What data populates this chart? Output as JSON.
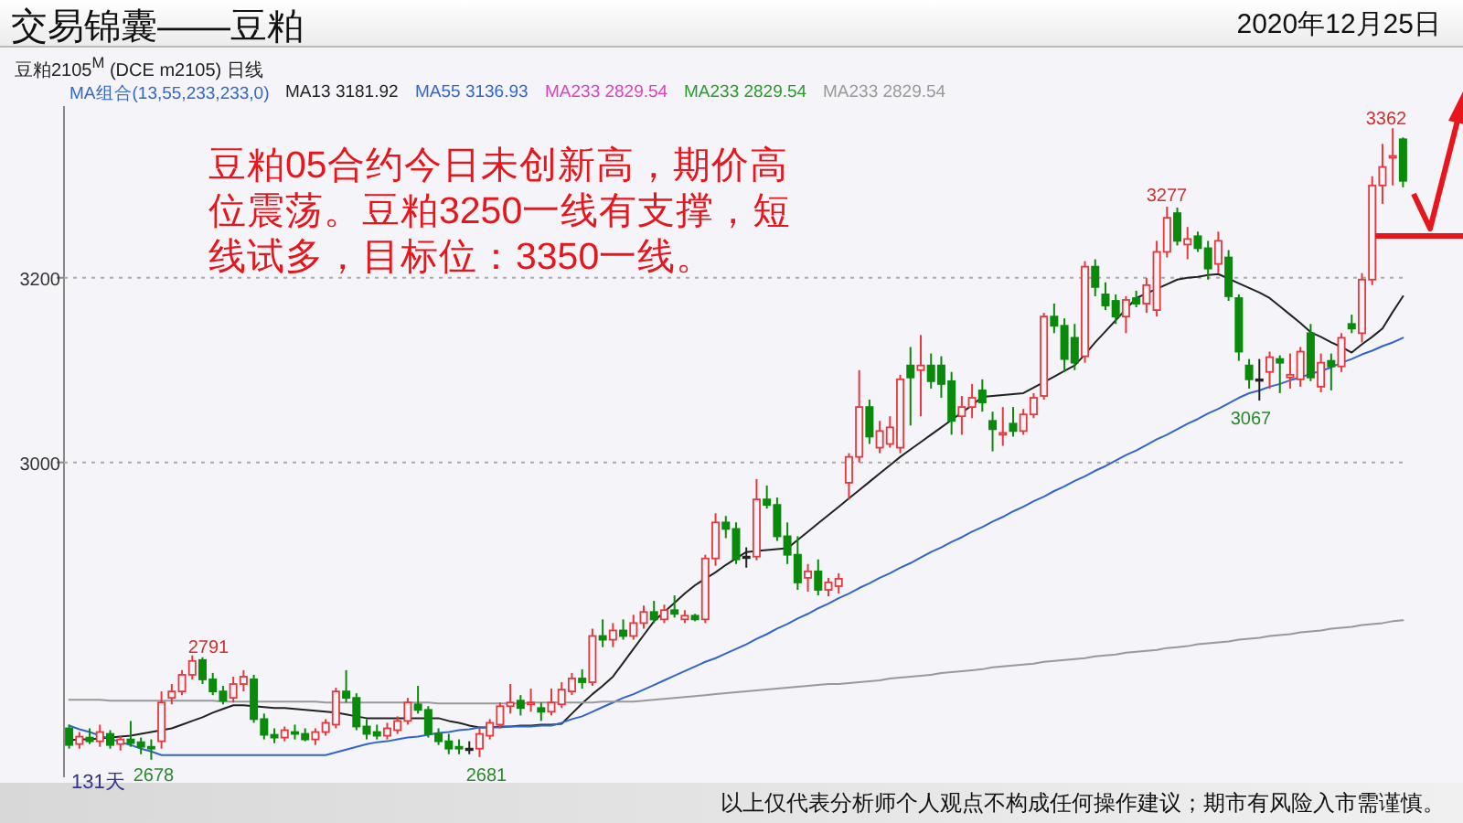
{
  "chart_data": {
    "type": "candlestick",
    "title": "交易锦囊——豆粕",
    "subtitle": "豆粕2105$^{M}$ (DCE m2105)  日线",
    "categories": [
      null,
      null,
      null,
      null,
      null,
      null,
      null,
      null,
      null,
      null,
      null,
      null,
      null,
      null,
      null,
      null,
      null,
      null,
      null,
      null,
      null,
      null,
      null,
      null,
      null,
      null,
      null,
      null,
      null,
      null,
      null,
      null,
      null,
      null,
      null,
      null,
      null,
      null,
      null,
      null,
      null,
      null,
      null,
      null,
      null,
      null,
      null,
      null,
      null,
      null,
      null,
      null,
      null,
      null,
      null,
      null,
      null,
      null,
      null,
      null,
      null,
      null,
      null,
      null,
      null,
      null,
      null,
      null,
      null,
      null,
      null,
      null,
      null,
      null,
      null,
      null,
      null,
      null,
      null,
      null,
      null,
      null,
      null,
      null,
      null,
      null,
      null,
      null,
      null,
      null,
      null,
      null,
      null,
      null,
      null,
      null,
      null,
      null,
      null,
      null,
      null,
      null,
      null,
      null,
      null,
      null,
      null,
      null,
      null,
      null,
      null,
      null,
      null,
      null,
      null,
      null,
      null,
      null,
      null,
      null,
      null,
      null,
      null,
      null,
      null,
      null,
      null,
      null,
      null,
      null,
      null
    ],
    "ohlc": [
      [
        2712,
        2716,
        2690,
        2694
      ],
      [
        2695,
        2708,
        2690,
        2703
      ],
      [
        2702,
        2712,
        2695,
        2698
      ],
      [
        2698,
        2716,
        2692,
        2708
      ],
      [
        2706,
        2710,
        2690,
        2694
      ],
      [
        2695,
        2704,
        2688,
        2700
      ],
      [
        2700,
        2720,
        2692,
        2696
      ],
      [
        2697,
        2702,
        2684,
        2692
      ],
      [
        2692,
        2700,
        2678,
        2690
      ],
      [
        2698,
        2752,
        2690,
        2740
      ],
      [
        2745,
        2760,
        2738,
        2752
      ],
      [
        2752,
        2775,
        2748,
        2770
      ],
      [
        2770,
        2791,
        2765,
        2785
      ],
      [
        2786,
        2789,
        2760,
        2765
      ],
      [
        2765,
        2772,
        2748,
        2752
      ],
      [
        2752,
        2758,
        2738,
        2742
      ],
      [
        2745,
        2768,
        2740,
        2760
      ],
      [
        2760,
        2775,
        2752,
        2768
      ],
      [
        2765,
        2770,
        2718,
        2722
      ],
      [
        2722,
        2728,
        2700,
        2705
      ],
      [
        2705,
        2712,
        2696,
        2702
      ],
      [
        2702,
        2714,
        2698,
        2710
      ],
      [
        2708,
        2716,
        2700,
        2706
      ],
      [
        2706,
        2712,
        2698,
        2700
      ],
      [
        2700,
        2712,
        2694,
        2708
      ],
      [
        2708,
        2722,
        2704,
        2718
      ],
      [
        2716,
        2756,
        2712,
        2752
      ],
      [
        2752,
        2775,
        2740,
        2745
      ],
      [
        2745,
        2750,
        2710,
        2714
      ],
      [
        2714,
        2722,
        2700,
        2706
      ],
      [
        2708,
        2716,
        2700,
        2704
      ],
      [
        2704,
        2718,
        2700,
        2712
      ],
      [
        2710,
        2725,
        2706,
        2720
      ],
      [
        2720,
        2745,
        2716,
        2740
      ],
      [
        2738,
        2758,
        2728,
        2732
      ],
      [
        2732,
        2736,
        2702,
        2706
      ],
      [
        2706,
        2712,
        2694,
        2698
      ],
      [
        2698,
        2706,
        2684,
        2690
      ],
      [
        2692,
        2700,
        2684,
        2690
      ],
      [
        2690,
        2698,
        2684,
        2690
      ],
      [
        2690,
        2712,
        2681,
        2706
      ],
      [
        2704,
        2722,
        2700,
        2718
      ],
      [
        2716,
        2740,
        2712,
        2736
      ],
      [
        2736,
        2760,
        2728,
        2740
      ],
      [
        2742,
        2748,
        2726,
        2734
      ],
      [
        2738,
        2755,
        2730,
        2740
      ],
      [
        2734,
        2740,
        2720,
        2730
      ],
      [
        2730,
        2755,
        2726,
        2740
      ],
      [
        2738,
        2762,
        2734,
        2754
      ],
      [
        2752,
        2772,
        2748,
        2766
      ],
      [
        2766,
        2776,
        2755,
        2762
      ],
      [
        2762,
        2820,
        2758,
        2812
      ],
      [
        2812,
        2830,
        2800,
        2808
      ],
      [
        2808,
        2826,
        2800,
        2818
      ],
      [
        2818,
        2830,
        2808,
        2812
      ],
      [
        2812,
        2835,
        2808,
        2826
      ],
      [
        2826,
        2845,
        2820,
        2838
      ],
      [
        2838,
        2850,
        2826,
        2830
      ],
      [
        2830,
        2846,
        2826,
        2840
      ],
      [
        2840,
        2856,
        2832,
        2836
      ],
      [
        2830,
        2840,
        2826,
        2834
      ],
      [
        2834,
        2836,
        2828,
        2830
      ],
      [
        2830,
        2900,
        2826,
        2896
      ],
      [
        2896,
        2945,
        2888,
        2935
      ],
      [
        2935,
        2942,
        2918,
        2928
      ],
      [
        2928,
        2935,
        2890,
        2895
      ],
      [
        2898,
        2908,
        2886,
        2898
      ],
      [
        2898,
        2982,
        2894,
        2960
      ],
      [
        2960,
        2975,
        2950,
        2954
      ],
      [
        2954,
        2962,
        2915,
        2920
      ],
      [
        2920,
        2935,
        2890,
        2900
      ],
      [
        2900,
        2920,
        2862,
        2870
      ],
      [
        2875,
        2890,
        2860,
        2882
      ],
      [
        2882,
        2895,
        2856,
        2862
      ],
      [
        2862,
        2875,
        2855,
        2870
      ],
      [
        2866,
        2880,
        2858,
        2874
      ],
      [
        2978,
        3010,
        2960,
        3006
      ],
      [
        3006,
        3100,
        3000,
        3060
      ],
      [
        3060,
        3068,
        3020,
        3028
      ],
      [
        3016,
        3045,
        3010,
        3034
      ],
      [
        3020,
        3050,
        3016,
        3038
      ],
      [
        3016,
        3095,
        3010,
        3090
      ],
      [
        3105,
        3125,
        3040,
        3092
      ],
      [
        3100,
        3138,
        3050,
        3105
      ],
      [
        3105,
        3118,
        3080,
        3088
      ],
      [
        3105,
        3115,
        3070,
        3085
      ],
      [
        3088,
        3098,
        3030,
        3045
      ],
      [
        3050,
        3072,
        3030,
        3060
      ],
      [
        3060,
        3085,
        3048,
        3070
      ],
      [
        3078,
        3090,
        3055,
        3065
      ],
      [
        3045,
        3055,
        3012,
        3036
      ],
      [
        3030,
        3060,
        3018,
        3032
      ],
      [
        3042,
        3060,
        3028,
        3034
      ],
      [
        3034,
        3058,
        3030,
        3052
      ],
      [
        3052,
        3075,
        3048,
        3070
      ],
      [
        3072,
        3162,
        3068,
        3158
      ],
      [
        3158,
        3172,
        3140,
        3148
      ],
      [
        3148,
        3156,
        3098,
        3112
      ],
      [
        3135,
        3150,
        3100,
        3108
      ],
      [
        3115,
        3218,
        3108,
        3212
      ],
      [
        3212,
        3220,
        3180,
        3190
      ],
      [
        3182,
        3195,
        3165,
        3170
      ],
      [
        3175,
        3182,
        3150,
        3158
      ],
      [
        3158,
        3180,
        3140,
        3176
      ],
      [
        3178,
        3186,
        3168,
        3172
      ],
      [
        3172,
        3200,
        3162,
        3192
      ],
      [
        3165,
        3240,
        3158,
        3228
      ],
      [
        3228,
        3277,
        3222,
        3265
      ],
      [
        3270,
        3276,
        3235,
        3240
      ],
      [
        3236,
        3255,
        3220,
        3242
      ],
      [
        3245,
        3250,
        3228,
        3232
      ],
      [
        3232,
        3240,
        3198,
        3210
      ],
      [
        3215,
        3250,
        3205,
        3240
      ],
      [
        3222,
        3230,
        3175,
        3180
      ],
      [
        3178,
        3182,
        3110,
        3120
      ],
      [
        3105,
        3112,
        3080,
        3090
      ],
      [
        3090,
        3112,
        3067,
        3090
      ],
      [
        3098,
        3120,
        3080,
        3114
      ],
      [
        3112,
        3116,
        3075,
        3108
      ],
      [
        3092,
        3118,
        3080,
        3095
      ],
      [
        3090,
        3125,
        3082,
        3120
      ],
      [
        3140,
        3150,
        3088,
        3092
      ],
      [
        3082,
        3118,
        3076,
        3108
      ],
      [
        3110,
        3118,
        3078,
        3104
      ],
      [
        3104,
        3140,
        3098,
        3135
      ],
      [
        3150,
        3160,
        3140,
        3145
      ],
      [
        3140,
        3205,
        3130,
        3198
      ],
      [
        3198,
        3310,
        3192,
        3300
      ],
      [
        3300,
        3345,
        3280,
        3320
      ],
      [
        3330,
        3362,
        3300,
        3332
      ],
      [
        3350,
        3352,
        3298,
        3305
      ]
    ],
    "series": [
      {
        "name": "MA13 3181.92",
        "type": "line",
        "color": "#222222",
        "values": [
          2699,
          2700,
          2700,
          2701,
          2702,
          2703,
          2704,
          2706,
          2708,
          2710,
          2712,
          2716,
          2720,
          2724,
          2729,
          2733,
          2737,
          2737,
          2736,
          2735,
          2734,
          2734,
          2733,
          2732,
          2731,
          2730,
          2729,
          2727,
          2725,
          2723,
          2723,
          2723,
          2723,
          2723,
          2723,
          2723,
          2723,
          2720,
          2718,
          2715,
          2713,
          2713,
          2714,
          2714,
          2715,
          2715,
          2716,
          2716,
          2717,
          2728,
          2739,
          2749,
          2758,
          2768,
          2783,
          2798,
          2813,
          2828,
          2838,
          2848,
          2858,
          2867,
          2874,
          2881,
          2889,
          2896,
          2903,
          2904,
          2905,
          2906,
          2907,
          2916,
          2925,
          2934,
          2943,
          2952,
          2961,
          2970,
          2979,
          2988,
          2997,
          3006,
          3014,
          3022,
          3030,
          3038,
          3046,
          3054,
          3062,
          3071,
          3072,
          3073,
          3074,
          3075,
          3081,
          3087,
          3093,
          3099,
          3105,
          3117,
          3130,
          3142,
          3154,
          3166,
          3178,
          3183,
          3188,
          3193,
          3198,
          3200,
          3201,
          3203,
          3204,
          3199,
          3194,
          3189,
          3184,
          3178,
          3169,
          3160,
          3151,
          3141,
          3136,
          3130,
          3125,
          3119,
          3128,
          3136,
          3145,
          3163,
          3180
        ]
      },
      {
        "name": "MA55 3136.93",
        "type": "line",
        "color": "#3366cc",
        "values": [
          2715,
          2711,
          2708,
          2704,
          2701,
          2697,
          2694,
          2690,
          2687,
          2683,
          2683,
          2683,
          2683,
          2683,
          2683,
          2683,
          2683,
          2683,
          2683,
          2683,
          2683,
          2683,
          2683,
          2683,
          2683,
          2683,
          2686,
          2689,
          2692,
          2695,
          2697,
          2698,
          2700,
          2702,
          2703,
          2705,
          2707,
          2708,
          2710,
          2711,
          2713,
          2713,
          2713,
          2714,
          2714,
          2714,
          2715,
          2715,
          2718,
          2722,
          2725,
          2730,
          2735,
          2740,
          2745,
          2749,
          2754,
          2759,
          2764,
          2769,
          2774,
          2779,
          2784,
          2788,
          2793,
          2798,
          2803,
          2809,
          2814,
          2820,
          2825,
          2831,
          2836,
          2842,
          2847,
          2853,
          2858,
          2864,
          2869,
          2875,
          2880,
          2886,
          2891,
          2897,
          2903,
          2908,
          2914,
          2919,
          2925,
          2930,
          2936,
          2941,
          2947,
          2952,
          2958,
          2963,
          2969,
          2974,
          2980,
          2985,
          2991,
          2996,
          3002,
          3008,
          3013,
          3019,
          3025,
          3030,
          3036,
          3042,
          3047,
          3053,
          3058,
          3064,
          3070,
          3075,
          3078,
          3082,
          3085,
          3089,
          3092,
          3096,
          3099,
          3103,
          3108,
          3112,
          3117,
          3121,
          3126,
          3130,
          3135
        ]
      },
      {
        "name": "MA233 2829.54",
        "type": "line",
        "color": "#999999",
        "values": [
          2743,
          2743,
          2743,
          2743,
          2742,
          2742,
          2742,
          2742,
          2742,
          2742,
          2742,
          2742,
          2742,
          2742,
          2742,
          2741,
          2741,
          2741,
          2741,
          2741,
          2741,
          2741,
          2741,
          2741,
          2741,
          2740,
          2740,
          2740,
          2740,
          2740,
          2740,
          2740,
          2740,
          2740,
          2740,
          2740,
          2739,
          2739,
          2739,
          2739,
          2739,
          2739,
          2739,
          2739,
          2739,
          2740,
          2740,
          2740,
          2740,
          2740,
          2740,
          2740,
          2741,
          2741,
          2741,
          2741,
          2742,
          2743,
          2744,
          2745,
          2746,
          2747,
          2748,
          2749,
          2750,
          2751,
          2752,
          2753,
          2754,
          2755,
          2756,
          2757,
          2758,
          2759,
          2760,
          2760,
          2761,
          2762,
          2763,
          2764,
          2766,
          2767,
          2768,
          2769,
          2770,
          2772,
          2773,
          2774,
          2775,
          2776,
          2778,
          2779,
          2780,
          2781,
          2782,
          2784,
          2785,
          2786,
          2787,
          2788,
          2790,
          2791,
          2792,
          2794,
          2795,
          2796,
          2797,
          2799,
          2800,
          2801,
          2803,
          2804,
          2805,
          2806,
          2808,
          2809,
          2810,
          2812,
          2813,
          2814,
          2816,
          2817,
          2818,
          2820,
          2821,
          2822,
          2824,
          2825,
          2826,
          2828,
          2829
        ]
      }
    ],
    "ylim": [
      2659,
      3382
    ],
    "yticks": [
      3000,
      3200
    ],
    "grid": "y",
    "legend": "top left",
    "annotations": [
      "豆粕05合约今日未创新高，期价高位震荡。豆粕3250一线有支撑，短线试多，目标位：3350一线。",
      "131天",
      "以上仅代表分析师个人观点不构成任何操作建议；期市有风险入市需谨慎。",
      "2020年12月25日",
      "MA组合(13,55,233,233,0)",
      "MA233 2829.54",
      "MA233 2829.54",
      "2791",
      "2678",
      "2681",
      "3277",
      "3067",
      "3362"
    ]
  }
}
